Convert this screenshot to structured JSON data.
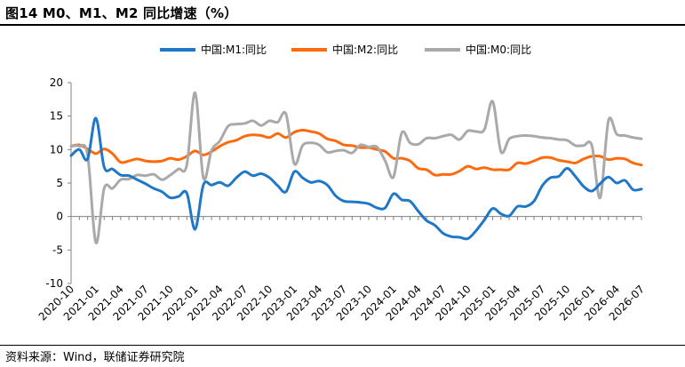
{
  "figure": {
    "title": "图14 M0、M1、M2 同比增速（%）",
    "source": "资料来源：Wind，联储证券研究院"
  },
  "chart_data": {
    "type": "line",
    "title": "",
    "xlabel": "",
    "ylabel": "",
    "ylim": [
      -10,
      20
    ],
    "y_ticks": [
      "20",
      "15",
      "10",
      "5",
      "0",
      "-5",
      "-10"
    ],
    "x_ticks": [
      "2020-10",
      "2021-01",
      "2021-04",
      "2021-07",
      "2021-10",
      "2022-01",
      "2022-04",
      "2022-07",
      "2022-10",
      "2023-01",
      "2023-04",
      "2023-07",
      "2023-10",
      "2024-01",
      "2024-04",
      "2024-07",
      "2024-10",
      "2025-01",
      "2025-04",
      "2025-07",
      "2025-10",
      "2026-01",
      "2026-04",
      "2026-07"
    ],
    "legend_position": "top",
    "grid": false,
    "x": [
      "2020-10",
      "2020-11",
      "2020-12",
      "2021-01",
      "2021-02",
      "2021-03",
      "2021-04",
      "2021-05",
      "2021-06",
      "2021-07",
      "2021-08",
      "2021-09",
      "2021-10",
      "2021-11",
      "2021-12",
      "2022-01",
      "2022-02",
      "2022-03",
      "2022-04",
      "2022-05",
      "2022-06",
      "2022-07",
      "2022-08",
      "2022-09",
      "2022-10",
      "2022-11",
      "2022-12",
      "2023-01",
      "2023-02",
      "2023-03",
      "2023-04",
      "2023-05",
      "2023-06",
      "2023-07",
      "2023-08",
      "2023-09",
      "2023-10",
      "2023-11",
      "2023-12",
      "2024-01",
      "2024-02",
      "2024-03",
      "2024-04",
      "2024-05",
      "2024-06",
      "2024-07",
      "2024-08",
      "2024-09",
      "2024-10",
      "2024-11",
      "2024-12",
      "2025-01",
      "2025-02",
      "2025-03",
      "2025-04",
      "2025-05",
      "2025-06",
      "2025-07",
      "2025-08",
      "2025-09",
      "2025-10",
      "2025-11",
      "2025-12",
      "2026-01",
      "2026-02",
      "2026-03",
      "2026-04",
      "2026-05",
      "2026-06",
      "2026-07"
    ],
    "series": [
      {
        "name": "中国:M1:同比",
        "color": "#1f77c8",
        "values": [
          9.1,
          10.0,
          8.6,
          14.7,
          7.4,
          7.1,
          6.2,
          6.1,
          5.5,
          4.9,
          4.2,
          3.7,
          2.8,
          3.0,
          3.5,
          -1.9,
          4.7,
          4.7,
          5.1,
          4.6,
          5.8,
          6.7,
          6.1,
          6.4,
          5.8,
          4.6,
          3.7,
          6.7,
          5.8,
          5.1,
          5.3,
          4.7,
          3.1,
          2.3,
          2.2,
          2.1,
          1.9,
          1.3,
          1.3,
          3.4,
          2.5,
          2.3,
          0.8,
          -0.6,
          -1.3,
          -2.5,
          -3.0,
          -3.1,
          -3.3,
          -2.1,
          -0.5,
          1.2,
          0.4,
          0.1,
          1.5,
          1.5,
          2.3,
          4.6,
          5.8,
          6.0,
          7.2,
          6.0,
          4.5,
          3.8,
          4.9,
          5.9,
          5.0,
          5.4,
          4.0,
          4.1
        ]
      },
      {
        "name": "中国:M2:同比",
        "color": "#ff6a0d",
        "values": [
          10.5,
          10.7,
          10.1,
          9.4,
          10.1,
          9.4,
          8.1,
          8.3,
          8.6,
          8.3,
          8.2,
          8.3,
          8.7,
          8.5,
          9.0,
          9.8,
          9.2,
          9.7,
          10.5,
          11.1,
          11.4,
          12.0,
          12.2,
          12.1,
          11.8,
          12.4,
          11.8,
          12.6,
          12.9,
          12.7,
          12.4,
          11.6,
          11.3,
          10.7,
          10.6,
          10.3,
          10.3,
          10.0,
          9.7,
          8.7,
          8.7,
          8.3,
          7.2,
          7.0,
          6.2,
          6.3,
          6.3,
          6.8,
          7.5,
          7.1,
          7.3,
          7.0,
          7.0,
          7.0,
          8.0,
          7.9,
          8.3,
          8.8,
          8.8,
          8.4,
          8.2,
          8.0,
          8.6,
          9.0,
          9.0,
          8.5,
          8.7,
          8.6,
          8.0,
          7.7
        ]
      },
      {
        "name": "中国:M0:同比",
        "color": "#a9a9a9",
        "values": [
          10.5,
          10.5,
          9.2,
          -3.9,
          4.2,
          4.2,
          5.5,
          5.6,
          6.2,
          6.1,
          6.3,
          5.5,
          6.2,
          7.1,
          7.7,
          18.5,
          5.8,
          9.9,
          11.3,
          13.5,
          13.8,
          13.9,
          14.3,
          13.6,
          14.3,
          14.1,
          15.3,
          7.9,
          10.6,
          11.0,
          10.7,
          9.6,
          9.8,
          9.9,
          9.5,
          10.7,
          10.4,
          10.4,
          8.3,
          5.9,
          12.5,
          11.0,
          10.8,
          11.7,
          11.7,
          12.0,
          12.2,
          11.5,
          12.8,
          12.7,
          13.0,
          17.2,
          9.7,
          11.6,
          12.0,
          12.1,
          12.0,
          11.8,
          11.7,
          11.5,
          11.4,
          10.6,
          10.6,
          10.6,
          2.8,
          14.3,
          12.3,
          12.1,
          11.8,
          11.6
        ]
      }
    ]
  }
}
